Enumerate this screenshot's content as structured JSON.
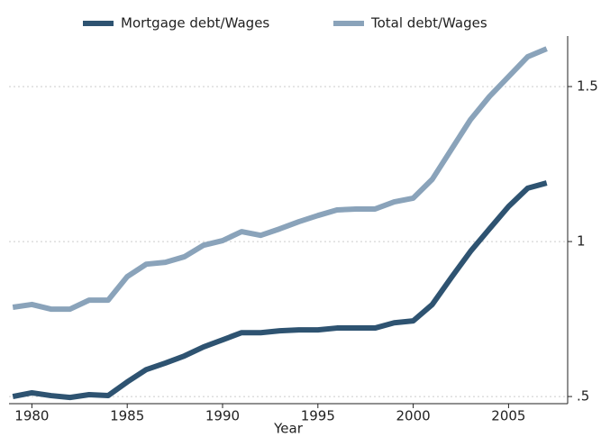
{
  "chart_data": {
    "type": "line",
    "x_label": "Year",
    "x": [
      1979,
      1980,
      1981,
      1982,
      1983,
      1984,
      1985,
      1986,
      1987,
      1988,
      1989,
      1990,
      1991,
      1992,
      1993,
      1994,
      1995,
      1996,
      1997,
      1998,
      1999,
      2000,
      2001,
      2002,
      2003,
      2004,
      2005,
      2006,
      2007
    ],
    "series": [
      {
        "name": "Mortgage debt/Wages",
        "color": "#2e5371",
        "values": [
          0.5,
          0.512,
          0.503,
          0.497,
          0.506,
          0.503,
          0.547,
          0.587,
          0.608,
          0.631,
          0.66,
          0.683,
          0.706,
          0.706,
          0.712,
          0.715,
          0.715,
          0.721,
          0.721,
          0.721,
          0.738,
          0.744,
          0.797,
          0.884,
          0.968,
          1.041,
          1.113,
          1.172,
          1.189
        ]
      },
      {
        "name": "Total debt/Wages",
        "color": "#8aa3ba",
        "values": [
          0.788,
          0.797,
          0.782,
          0.782,
          0.811,
          0.811,
          0.887,
          0.927,
          0.933,
          0.951,
          0.988,
          1.003,
          1.032,
          1.02,
          1.041,
          1.064,
          1.084,
          1.102,
          1.105,
          1.105,
          1.128,
          1.14,
          1.201,
          1.297,
          1.393,
          1.468,
          1.532,
          1.596,
          1.622
        ]
      }
    ],
    "xlim": [
      1978.8,
      2008.1
    ],
    "xticks": [
      1980,
      1985,
      1990,
      1995,
      2000,
      2005
    ],
    "ylim": [
      0.477,
      1.663
    ],
    "yticks": [
      {
        "value": 0.5,
        "label": ".5"
      },
      1,
      1.5
    ],
    "grid": true,
    "legend": "top"
  }
}
